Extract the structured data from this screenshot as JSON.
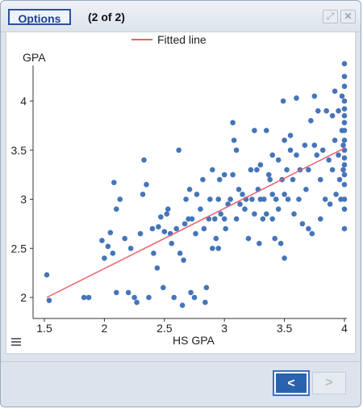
{
  "header": {
    "options_label": "Options",
    "page_counter": "(2 of 2)",
    "expand_icon": "expand-icon",
    "close_icon": "close-icon"
  },
  "footer": {
    "prev_label": "<",
    "next_label": ">"
  },
  "colors": {
    "points": "#4575b9",
    "fitted_line": "#e8606a",
    "accent": "#2b62ad"
  },
  "chart_data": {
    "type": "scatter",
    "title": "",
    "xlabel": "HS GPA",
    "ylabel": "GPA",
    "xlim": [
      1.45,
      4.0
    ],
    "ylim": [
      1.9,
      4.4
    ],
    "xticks": [
      "1.5",
      "2",
      "2.5",
      "3",
      "3.5",
      "4"
    ],
    "yticks": [
      "2",
      "2.5",
      "3",
      "3.5",
      "4"
    ],
    "legend": {
      "position": "top-center",
      "entries": [
        "Fitted line"
      ]
    },
    "fitted_line": {
      "x": [
        1.52,
        4.0
      ],
      "y": [
        2.0,
        3.52
      ]
    },
    "points": [
      [
        1.52,
        2.23
      ],
      [
        1.54,
        1.97
      ],
      [
        1.83,
        2.0
      ],
      [
        1.87,
        2.0
      ],
      [
        1.98,
        2.58
      ],
      [
        2.0,
        2.4
      ],
      [
        2.03,
        2.52
      ],
      [
        2.05,
        2.66
      ],
      [
        2.07,
        2.45
      ],
      [
        2.08,
        3.17
      ],
      [
        2.1,
        2.9
      ],
      [
        2.1,
        2.05
      ],
      [
        2.13,
        3.0
      ],
      [
        2.17,
        2.6
      ],
      [
        2.2,
        2.05
      ],
      [
        2.22,
        2.5
      ],
      [
        2.25,
        2.0
      ],
      [
        2.27,
        1.95
      ],
      [
        2.3,
        2.65
      ],
      [
        2.32,
        3.05
      ],
      [
        2.33,
        3.4
      ],
      [
        2.35,
        3.15
      ],
      [
        2.37,
        2.0
      ],
      [
        2.4,
        2.7
      ],
      [
        2.41,
        2.45
      ],
      [
        2.44,
        2.3
      ],
      [
        2.45,
        2.72
      ],
      [
        2.47,
        2.82
      ],
      [
        2.49,
        2.1
      ],
      [
        2.5,
        2.67
      ],
      [
        2.52,
        2.85
      ],
      [
        2.53,
        2.9
      ],
      [
        2.55,
        2.65
      ],
      [
        2.56,
        2.55
      ],
      [
        2.58,
        2.0
      ],
      [
        2.6,
        2.7
      ],
      [
        2.62,
        3.5
      ],
      [
        2.63,
        2.45
      ],
      [
        2.65,
        1.92
      ],
      [
        2.66,
        2.38
      ],
      [
        2.67,
        2.75
      ],
      [
        2.68,
        3.0
      ],
      [
        2.7,
        2.8
      ],
      [
        2.71,
        3.1
      ],
      [
        2.72,
        2.05
      ],
      [
        2.73,
        2.8
      ],
      [
        2.75,
        2.0
      ],
      [
        2.76,
        2.65
      ],
      [
        2.77,
        3.05
      ],
      [
        2.8,
        2.9
      ],
      [
        2.82,
        3.2
      ],
      [
        2.83,
        2.7
      ],
      [
        2.84,
        1.95
      ],
      [
        2.85,
        2.1
      ],
      [
        2.87,
        2.8
      ],
      [
        2.88,
        3.0
      ],
      [
        2.9,
        3.3
      ],
      [
        2.9,
        2.5
      ],
      [
        2.92,
        2.8
      ],
      [
        2.93,
        2.6
      ],
      [
        2.95,
        2.5
      ],
      [
        2.95,
        3.0
      ],
      [
        2.96,
        3.2
      ],
      [
        2.97,
        2.85
      ],
      [
        3.0,
        3.25
      ],
      [
        3.0,
        2.8
      ],
      [
        3.01,
        2.7
      ],
      [
        3.03,
        2.95
      ],
      [
        3.05,
        3.0
      ],
      [
        3.07,
        3.78
      ],
      [
        3.07,
        3.25
      ],
      [
        3.08,
        3.6
      ],
      [
        3.1,
        3.5
      ],
      [
        3.1,
        2.8
      ],
      [
        3.12,
        3.1
      ],
      [
        3.13,
        2.95
      ],
      [
        3.15,
        3.05
      ],
      [
        3.17,
        2.9
      ],
      [
        3.18,
        3.0
      ],
      [
        3.2,
        2.6
      ],
      [
        3.22,
        3.3
      ],
      [
        3.23,
        3.0
      ],
      [
        3.25,
        3.7
      ],
      [
        3.25,
        2.85
      ],
      [
        3.27,
        3.3
      ],
      [
        3.28,
        3.1
      ],
      [
        3.29,
        2.55
      ],
      [
        3.3,
        3.35
      ],
      [
        3.3,
        3.0
      ],
      [
        3.32,
        2.8
      ],
      [
        3.33,
        3.0
      ],
      [
        3.35,
        3.7
      ],
      [
        3.35,
        2.85
      ],
      [
        3.37,
        3.25
      ],
      [
        3.38,
        3.2
      ],
      [
        3.4,
        3.45
      ],
      [
        3.4,
        3.05
      ],
      [
        3.4,
        2.8
      ],
      [
        3.42,
        2.6
      ],
      [
        3.43,
        3.0
      ],
      [
        3.45,
        3.4
      ],
      [
        3.45,
        2.9
      ],
      [
        3.47,
        2.55
      ],
      [
        3.48,
        3.2
      ],
      [
        3.49,
        4.0
      ],
      [
        3.5,
        3.6
      ],
      [
        3.5,
        3.05
      ],
      [
        3.5,
        2.4
      ],
      [
        3.52,
        3.3
      ],
      [
        3.53,
        3.0
      ],
      [
        3.55,
        3.65
      ],
      [
        3.55,
        3.5
      ],
      [
        3.57,
        3.2
      ],
      [
        3.58,
        2.85
      ],
      [
        3.6,
        4.03
      ],
      [
        3.6,
        3.45
      ],
      [
        3.62,
        3.0
      ],
      [
        3.63,
        3.3
      ],
      [
        3.65,
        2.75
      ],
      [
        3.67,
        3.55
      ],
      [
        3.68,
        3.1
      ],
      [
        3.7,
        3.3
      ],
      [
        3.7,
        2.7
      ],
      [
        3.72,
        3.8
      ],
      [
        3.73,
        2.65
      ],
      [
        3.75,
        4.05
      ],
      [
        3.75,
        3.55
      ],
      [
        3.77,
        3.45
      ],
      [
        3.78,
        3.9
      ],
      [
        3.8,
        3.2
      ],
      [
        3.8,
        2.8
      ],
      [
        3.82,
        3.5
      ],
      [
        3.84,
        3.0
      ],
      [
        3.85,
        3.9
      ],
      [
        3.87,
        3.4
      ],
      [
        3.88,
        2.95
      ],
      [
        3.9,
        3.85
      ],
      [
        3.9,
        3.3
      ],
      [
        3.92,
        4.1
      ],
      [
        3.92,
        3.6
      ],
      [
        3.93,
        3.05
      ],
      [
        3.95,
        3.9
      ],
      [
        3.95,
        3.45
      ],
      [
        3.96,
        3.2
      ],
      [
        3.97,
        3.0
      ],
      [
        3.98,
        4.05
      ],
      [
        3.98,
        3.7
      ],
      [
        3.99,
        3.55
      ],
      [
        3.99,
        3.3
      ],
      [
        4.0,
        4.38
      ],
      [
        4.0,
        4.25
      ],
      [
        4.0,
        4.15
      ],
      [
        4.0,
        4.0
      ],
      [
        4.0,
        3.92
      ],
      [
        4.0,
        3.85
      ],
      [
        4.0,
        3.78
      ],
      [
        4.0,
        3.7
      ],
      [
        4.0,
        3.6
      ],
      [
        4.0,
        3.5
      ],
      [
        4.0,
        3.42
      ],
      [
        4.0,
        3.35
      ],
      [
        4.0,
        3.25
      ],
      [
        4.0,
        3.15
      ],
      [
        4.0,
        3.0
      ],
      [
        4.0,
        2.9
      ],
      [
        4.0,
        2.7
      ]
    ]
  }
}
